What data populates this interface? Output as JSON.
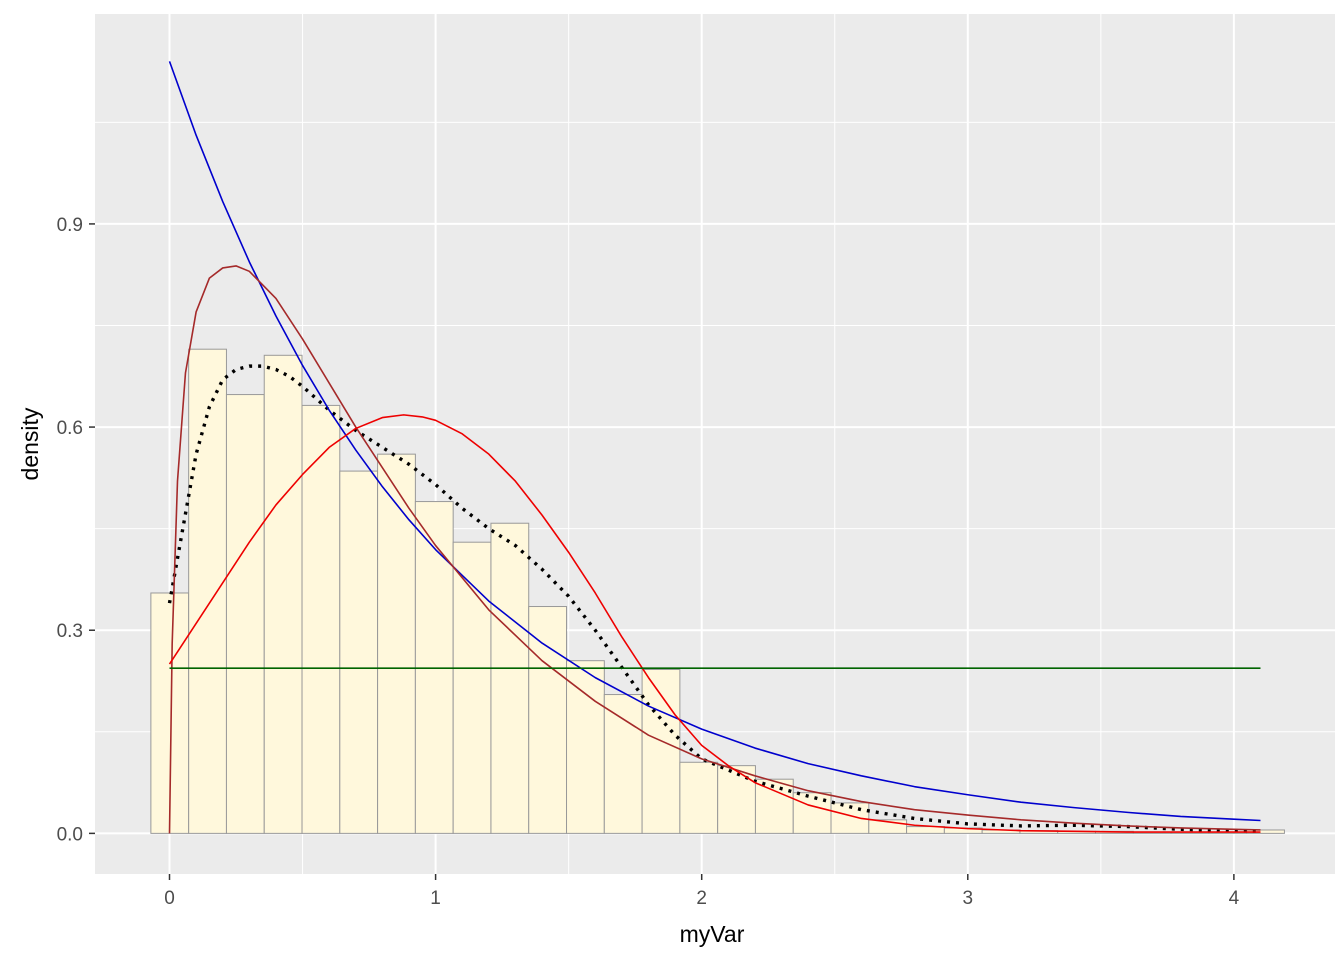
{
  "chart_data": {
    "type": "histogram",
    "xlabel": "myVar",
    "ylabel": "density",
    "xlim": [
      -0.28,
      4.38
    ],
    "ylim": [
      -0.06,
      1.21
    ],
    "x_ticks": [
      0,
      1,
      2,
      3,
      4
    ],
    "x_tick_labels": [
      "0",
      "1",
      "2",
      "3",
      "4"
    ],
    "y_ticks": [
      0.0,
      0.3,
      0.6,
      0.9
    ],
    "y_tick_labels": [
      "0.0",
      "0.3",
      "0.6",
      "0.9"
    ],
    "grid": true,
    "background": "#ebebeb",
    "bin_width": 0.142,
    "bins": [
      {
        "x0": -0.07,
        "x1": 0.072,
        "density": 0.355
      },
      {
        "x0": 0.072,
        "x1": 0.214,
        "density": 0.715
      },
      {
        "x0": 0.214,
        "x1": 0.356,
        "density": 0.648
      },
      {
        "x0": 0.356,
        "x1": 0.498,
        "density": 0.706
      },
      {
        "x0": 0.498,
        "x1": 0.64,
        "density": 0.632
      },
      {
        "x0": 0.64,
        "x1": 0.782,
        "density": 0.535
      },
      {
        "x0": 0.782,
        "x1": 0.924,
        "density": 0.56
      },
      {
        "x0": 0.924,
        "x1": 1.066,
        "density": 0.49
      },
      {
        "x0": 1.066,
        "x1": 1.208,
        "density": 0.43
      },
      {
        "x0": 1.208,
        "x1": 1.35,
        "density": 0.458
      },
      {
        "x0": 1.35,
        "x1": 1.492,
        "density": 0.335
      },
      {
        "x0": 1.492,
        "x1": 1.634,
        "density": 0.255
      },
      {
        "x0": 1.634,
        "x1": 1.776,
        "density": 0.205
      },
      {
        "x0": 1.776,
        "x1": 1.918,
        "density": 0.242
      },
      {
        "x0": 1.918,
        "x1": 2.06,
        "density": 0.105
      },
      {
        "x0": 2.06,
        "x1": 2.202,
        "density": 0.1
      },
      {
        "x0": 2.202,
        "x1": 2.344,
        "density": 0.08
      },
      {
        "x0": 2.344,
        "x1": 2.486,
        "density": 0.06
      },
      {
        "x0": 2.486,
        "x1": 2.628,
        "density": 0.045
      },
      {
        "x0": 2.628,
        "x1": 2.77,
        "density": 0.02
      },
      {
        "x0": 2.77,
        "x1": 2.912,
        "density": 0.01
      },
      {
        "x0": 2.912,
        "x1": 3.054,
        "density": 0.008
      },
      {
        "x0": 3.054,
        "x1": 3.196,
        "density": 0.005
      },
      {
        "x0": 3.196,
        "x1": 3.338,
        "density": 0.004
      },
      {
        "x0": 3.338,
        "x1": 3.48,
        "density": 0.003
      },
      {
        "x0": 3.48,
        "x1": 3.622,
        "density": 0.003
      },
      {
        "x0": 3.622,
        "x1": 3.764,
        "density": 0.002
      },
      {
        "x0": 3.764,
        "x1": 3.906,
        "density": 0.002
      },
      {
        "x0": 3.906,
        "x1": 4.048,
        "density": 0.002
      },
      {
        "x0": 4.048,
        "x1": 4.19,
        "density": 0.005
      }
    ],
    "bar_fill": "#fff8dc",
    "bar_stroke": "#999999",
    "series": [
      {
        "kind": "kde",
        "color": "#000000",
        "style": "dotted",
        "x": [
          0.0,
          0.05,
          0.1,
          0.15,
          0.2,
          0.25,
          0.3,
          0.35,
          0.4,
          0.45,
          0.5,
          0.6,
          0.7,
          0.8,
          0.9,
          1.0,
          1.1,
          1.2,
          1.3,
          1.4,
          1.5,
          1.6,
          1.7,
          1.8,
          1.9,
          2.0,
          2.2,
          2.4,
          2.6,
          2.8,
          3.0,
          3.2,
          3.4,
          3.6,
          3.8,
          4.0,
          4.1
        ],
        "y": [
          0.34,
          0.45,
          0.56,
          0.63,
          0.67,
          0.685,
          0.69,
          0.69,
          0.685,
          0.675,
          0.66,
          0.625,
          0.595,
          0.57,
          0.545,
          0.515,
          0.48,
          0.45,
          0.425,
          0.39,
          0.35,
          0.3,
          0.245,
          0.19,
          0.145,
          0.11,
          0.077,
          0.055,
          0.035,
          0.022,
          0.014,
          0.011,
          0.012,
          0.01,
          0.006,
          0.004,
          0.003
        ]
      },
      {
        "kind": "fit",
        "color": "#0000cd",
        "style": "solid",
        "x": [
          0.0,
          0.1,
          0.2,
          0.3,
          0.4,
          0.5,
          0.6,
          0.7,
          0.8,
          0.9,
          1.0,
          1.2,
          1.4,
          1.6,
          1.8,
          2.0,
          2.2,
          2.4,
          2.6,
          2.8,
          3.0,
          3.2,
          3.4,
          3.6,
          3.8,
          4.0,
          4.1
        ],
        "y": [
          1.14,
          1.031,
          0.933,
          0.844,
          0.764,
          0.691,
          0.625,
          0.566,
          0.512,
          0.463,
          0.419,
          0.343,
          0.281,
          0.23,
          0.188,
          0.154,
          0.126,
          0.103,
          0.085,
          0.069,
          0.057,
          0.046,
          0.038,
          0.031,
          0.025,
          0.021,
          0.019
        ]
      },
      {
        "kind": "fit",
        "color": "#a52a2a",
        "style": "solid",
        "x": [
          0.0,
          0.01,
          0.03,
          0.06,
          0.1,
          0.15,
          0.2,
          0.25,
          0.3,
          0.4,
          0.5,
          0.6,
          0.7,
          0.8,
          0.9,
          1.0,
          1.2,
          1.4,
          1.6,
          1.8,
          2.0,
          2.2,
          2.4,
          2.6,
          2.8,
          3.0,
          3.2,
          3.4,
          3.6,
          3.8,
          4.0,
          4.1
        ],
        "y": [
          0.0,
          0.28,
          0.52,
          0.68,
          0.77,
          0.82,
          0.835,
          0.838,
          0.83,
          0.79,
          0.73,
          0.665,
          0.6,
          0.54,
          0.48,
          0.425,
          0.33,
          0.255,
          0.195,
          0.145,
          0.11,
          0.085,
          0.063,
          0.047,
          0.035,
          0.027,
          0.02,
          0.015,
          0.011,
          0.008,
          0.006,
          0.005
        ]
      },
      {
        "kind": "fit",
        "color": "#ee0000",
        "style": "solid",
        "x": [
          0.0,
          0.1,
          0.2,
          0.3,
          0.4,
          0.5,
          0.6,
          0.7,
          0.8,
          0.88,
          0.95,
          1.0,
          1.1,
          1.2,
          1.3,
          1.4,
          1.5,
          1.6,
          1.7,
          1.8,
          1.9,
          2.0,
          2.1,
          2.2,
          2.4,
          2.6,
          2.8,
          3.0,
          3.2,
          3.4,
          3.6,
          3.8,
          4.0,
          4.1
        ],
        "y": [
          0.25,
          0.31,
          0.37,
          0.43,
          0.485,
          0.53,
          0.57,
          0.598,
          0.614,
          0.618,
          0.615,
          0.61,
          0.59,
          0.56,
          0.52,
          0.47,
          0.415,
          0.355,
          0.29,
          0.23,
          0.175,
          0.13,
          0.1,
          0.075,
          0.042,
          0.022,
          0.012,
          0.007,
          0.004,
          0.003,
          0.002,
          0.002,
          0.002,
          0.002
        ]
      },
      {
        "kind": "fit",
        "color": "#006400",
        "style": "solid",
        "x": [
          0.0,
          4.1
        ],
        "y": [
          0.244,
          0.244
        ]
      }
    ]
  }
}
